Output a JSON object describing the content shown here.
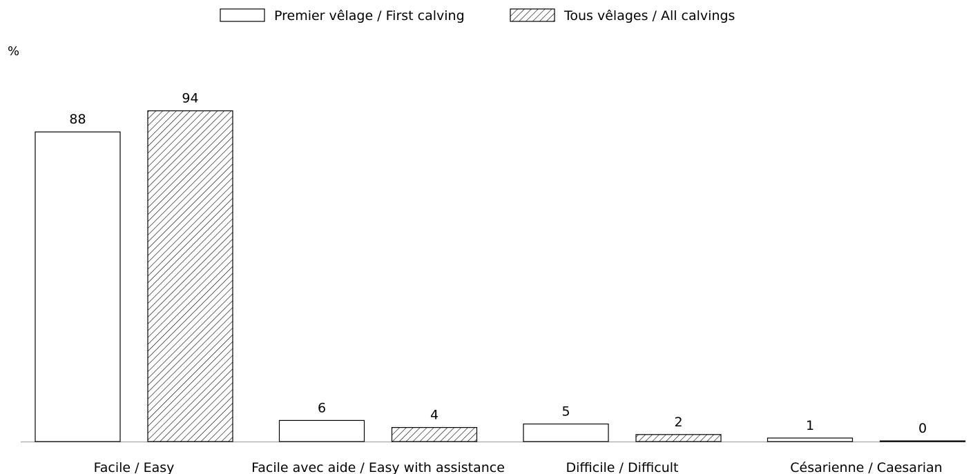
{
  "chart_data": {
    "type": "bar",
    "ylabel": "%",
    "categories": [
      "Facile / Easy",
      "Facile avec aide / Easy with assistance",
      "Difficile / Difficult",
      "Césarienne / Caesarian"
    ],
    "series": [
      {
        "name": "Premier vêlage / First calving",
        "values": [
          88,
          6,
          5,
          1
        ],
        "pattern": "none"
      },
      {
        "name": "Tous vêlages / All calvings",
        "values": [
          94,
          4,
          2,
          0
        ],
        "pattern": "hatch"
      }
    ],
    "ylim": [
      0,
      100
    ],
    "grid": false,
    "legend_position": "top-center",
    "colors": {
      "bar_fill": "#ffffff",
      "stroke": "#000000",
      "hatch": "#000000"
    }
  }
}
